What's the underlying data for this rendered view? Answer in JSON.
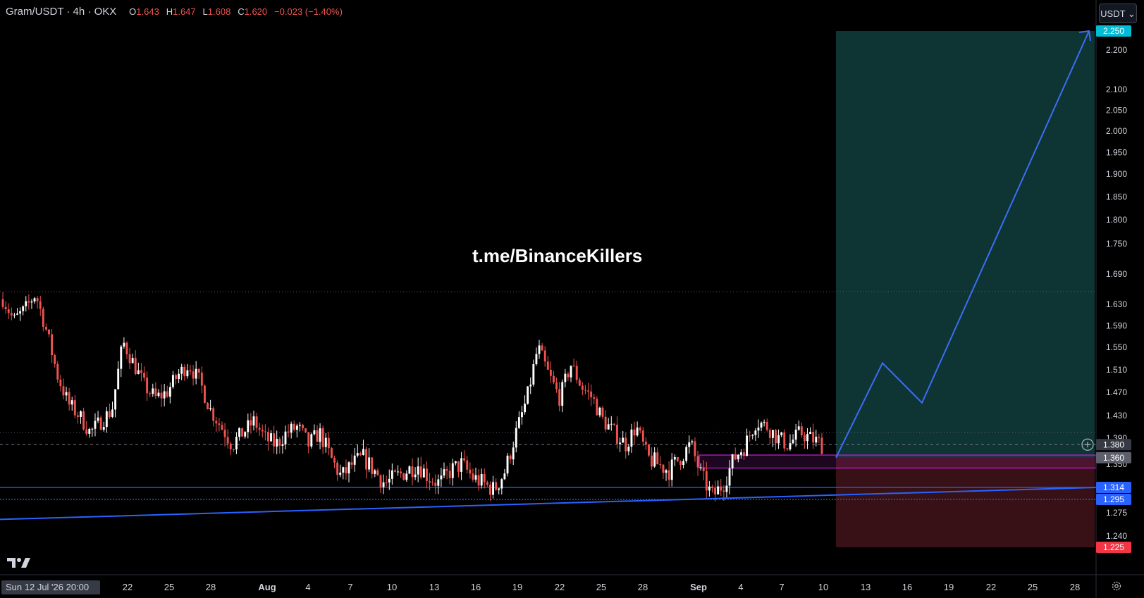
{
  "header": {
    "symbol": "Gram/USDT · 4h · OKX",
    "o_label": "O",
    "o_value": "1.643",
    "h_label": "H",
    "h_value": "1.647",
    "l_label": "L",
    "l_value": "1.608",
    "c_label": "C",
    "c_value": "1.620",
    "change": "−0.023 (−1.40%)"
  },
  "currency_button": "USDT ⌄",
  "watermark": "t.me/BinanceKillers",
  "colors": {
    "up": "#ffffff",
    "down": "#ef5350",
    "accent_blue": "#2962ff",
    "target_zone": "#0f3a3a",
    "stop_zone": "#3b1217",
    "zone_box": "#c026d3"
  },
  "chart_data": {
    "type": "candlestick",
    "y_axis_ticks": [
      "2.200",
      "2.100",
      "2.050",
      "2.000",
      "1.950",
      "1.900",
      "1.850",
      "1.800",
      "1.750",
      "1.690",
      "1.630",
      "1.590",
      "1.550",
      "1.510",
      "1.470",
      "1.430",
      "1.390",
      "1.350",
      "1.275",
      "1.240"
    ],
    "x_axis_ticks": [
      "22",
      "25",
      "28",
      "Aug",
      "4",
      "7",
      "10",
      "13",
      "16",
      "19",
      "22",
      "25",
      "28",
      "Sep",
      "4",
      "7",
      "10",
      "13",
      "16",
      "19",
      "22",
      "25",
      "28"
    ],
    "x_axis_start_label": "Sun 12 Jul '26   20:00",
    "price_labels": [
      {
        "value": 2.25,
        "text": "2.250",
        "color": "#00bcd4"
      },
      {
        "value": 1.38,
        "text": "1.380",
        "color": "#363a45"
      },
      {
        "value": 1.36,
        "text": "1.360",
        "color": "#5d606b"
      },
      {
        "value": 1.314,
        "text": "1.314",
        "color": "#2962ff"
      },
      {
        "value": 1.295,
        "text": "1.295",
        "color": "#2962ff"
      },
      {
        "value": 1.225,
        "text": "1.225",
        "color": "#f23645"
      }
    ],
    "position": {
      "entry": 1.36,
      "target": 2.25,
      "stop": 1.225
    },
    "horizontal_levels": [
      1.314,
      1.295
    ],
    "dotted_levels": [
      1.655,
      1.4
    ],
    "current_price": 1.38,
    "demand_zone": {
      "top": 1.364,
      "bottom": 1.344
    },
    "trendline": {
      "from": 1.265,
      "to": 1.314
    },
    "projection_path": [
      1.36,
      1.522,
      1.452,
      2.25
    ],
    "price_path": [
      1.64,
      1.6,
      1.62,
      1.65,
      1.58,
      1.5,
      1.45,
      1.43,
      1.4,
      1.42,
      1.44,
      1.56,
      1.52,
      1.48,
      1.46,
      1.47,
      1.5,
      1.52,
      1.49,
      1.44,
      1.41,
      1.38,
      1.4,
      1.42,
      1.39,
      1.38,
      1.4,
      1.41,
      1.38,
      1.4,
      1.36,
      1.33,
      1.35,
      1.36,
      1.34,
      1.32,
      1.33,
      1.34,
      1.35,
      1.33,
      1.32,
      1.34,
      1.35,
      1.33,
      1.32,
      1.31,
      1.34,
      1.4,
      1.46,
      1.55,
      1.5,
      1.46,
      1.52,
      1.48,
      1.46,
      1.42,
      1.4,
      1.38,
      1.41,
      1.36,
      1.35,
      1.34,
      1.36,
      1.38,
      1.33,
      1.3,
      1.32,
      1.36,
      1.38,
      1.42,
      1.41,
      1.39,
      1.38,
      1.4,
      1.39,
      1.38
    ]
  }
}
